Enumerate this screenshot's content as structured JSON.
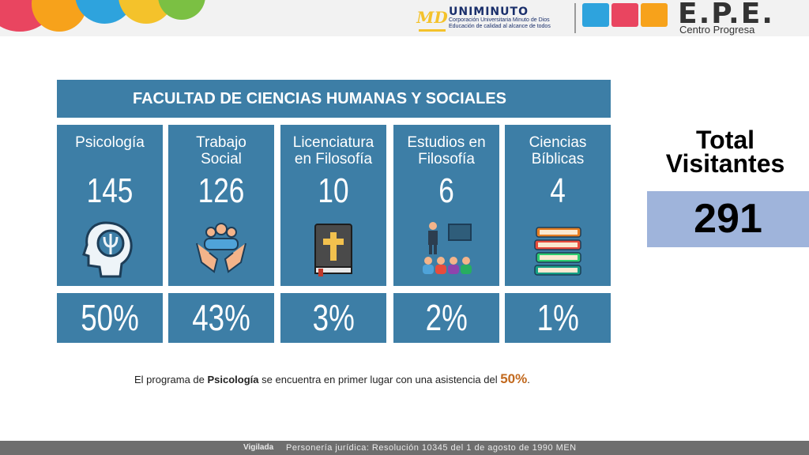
{
  "header": {
    "uniminuto": {
      "logo_mark": "MD",
      "name": "UNIMINUTO",
      "line1": "Corporación Universitaria Minuto de Dios",
      "line2": "Educación de calidad al alcance de todos"
    },
    "epe": {
      "title": "E.P.E.",
      "subtitle": "Centro Progresa"
    }
  },
  "faculty": {
    "title": "FACULTAD DE CIENCIAS HUMANAS Y SOCIALES",
    "programs": [
      {
        "name_line1": "Psicología",
        "name_line2": "",
        "count": "145",
        "percent": "50%",
        "icon": "psychology-head-icon"
      },
      {
        "name_line1": "Trabajo",
        "name_line2": "Social",
        "count": "126",
        "percent": "43%",
        "icon": "social-work-hands-icon"
      },
      {
        "name_line1": "Licenciatura",
        "name_line2": "en Filosofía",
        "count": "10",
        "percent": "3%",
        "icon": "bible-icon"
      },
      {
        "name_line1": "Estudios en",
        "name_line2": "Filosofía",
        "count": "6",
        "percent": "2%",
        "icon": "classroom-icon"
      },
      {
        "name_line1": "Ciencias",
        "name_line2": "Bíblicas",
        "count": "4",
        "percent": "1%",
        "icon": "books-stack-icon"
      }
    ]
  },
  "total": {
    "label_line1": "Total",
    "label_line2": "Visitantes",
    "value": "291"
  },
  "note": {
    "prefix": "El programa de ",
    "program": "Psicología",
    "middle": " se encuentra en primer lugar con una asistencia del ",
    "percent": "50%",
    "suffix": "."
  },
  "footer": {
    "vigilada": "Vigilada",
    "resolution": "Personería jurídica: Resolución 10345 del 1 de agosto de 1990 MEN"
  },
  "colors": {
    "card_blue": "#3d7ea6",
    "total_box": "#9fb4db",
    "highlight": "#c2691e"
  }
}
